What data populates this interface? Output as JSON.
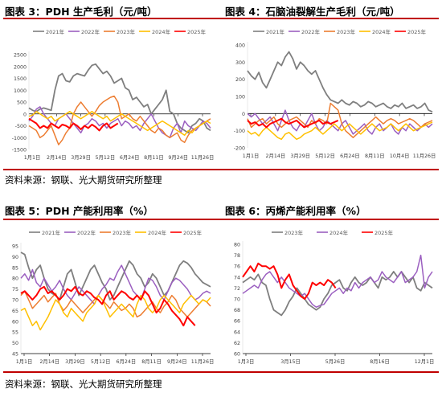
{
  "section1": {
    "source": "资料来源：钢联、光大期货研究所整理"
  },
  "section2": {
    "source": "资料来源：钢联、光大期货研究所整理"
  },
  "colors": {
    "rule": "#c00000",
    "y2021": "#7f7f7f",
    "y2022": "#9b5fc0",
    "y2023": "#ed7d31",
    "y2024": "#ffc000",
    "y2025": "#ff0000"
  },
  "chart_data": [
    {
      "id": "fig3",
      "type": "line",
      "title": "图表 3：PDH 生产毛利（元/吨）",
      "ylim": [
        -1500,
        2500
      ],
      "yticks": [
        -1500,
        -1000,
        -500,
        0,
        500,
        1000,
        1500,
        2000,
        2500
      ],
      "xticks": [
        "1月1日",
        "2月14日",
        "3月29日",
        "5月12日",
        "6月24日",
        "8月11日",
        "9月24日",
        "11月26日"
      ],
      "x_count": 50,
      "series": [
        {
          "name": "2021年",
          "color": "#7f7f7f",
          "width": 1.8,
          "values": [
            250,
            150,
            100,
            200,
            250,
            200,
            150,
            1000,
            1600,
            1700,
            1400,
            1350,
            1600,
            1700,
            1650,
            1600,
            1850,
            2050,
            2100,
            1900,
            1700,
            1800,
            1600,
            1300,
            1400,
            1500,
            1100,
            1000,
            600,
            700,
            500,
            300,
            400,
            0,
            200,
            400,
            600,
            1000,
            100,
            0,
            -400,
            -600,
            -700,
            -800,
            -500,
            -400,
            -200,
            -300,
            -600,
            -700
          ]
        },
        {
          "name": "2022年",
          "color": "#9b5fc0",
          "width": 1.5,
          "values": [
            -300,
            -100,
            200,
            300,
            0,
            -200,
            -400,
            -500,
            -200,
            -100,
            0,
            -200,
            -400,
            -600,
            -800,
            -500,
            -400,
            -200,
            -300,
            -500,
            -400,
            -600,
            -400,
            -300,
            -200,
            -500,
            -300,
            -400,
            -600,
            -500,
            -700,
            -400,
            -200,
            0,
            -300,
            -600,
            -800,
            -900,
            -1000,
            -600,
            -400,
            -800,
            -300,
            -500,
            -600,
            -700,
            -500,
            -300,
            -400,
            -600
          ]
        },
        {
          "name": "2023年",
          "color": "#ed7d31",
          "width": 1.5,
          "values": [
            -500,
            -600,
            -700,
            -1000,
            -900,
            -700,
            -500,
            -900,
            -1300,
            -1100,
            -800,
            -600,
            0,
            300,
            500,
            300,
            100,
            -100,
            100,
            350,
            500,
            600,
            700,
            750,
            500,
            -200,
            -100,
            0,
            -200,
            -300,
            -100,
            -300,
            -500,
            -700,
            -800,
            -600,
            -700,
            -900,
            -1000,
            -900,
            -800,
            -1100,
            -1200,
            -900,
            -700,
            -600,
            -500,
            -400,
            -300,
            -200
          ]
        },
        {
          "name": "2024年",
          "color": "#ffc000",
          "width": 1.5,
          "values": [
            -100,
            -50,
            100,
            0,
            -100,
            -200,
            -100,
            -300,
            -200,
            -100,
            0,
            100,
            0,
            -100,
            -200,
            -100,
            0,
            100,
            0,
            -100,
            -200,
            -100,
            -300,
            -200,
            -100,
            0,
            -100,
            -200,
            -300,
            -400,
            -500,
            -600,
            -700,
            -600,
            -500,
            -400,
            -300,
            -400,
            -500,
            -600,
            -700,
            -800,
            -900,
            -700,
            -800,
            -600,
            -500,
            -400,
            -300,
            -400
          ]
        },
        {
          "name": "2025年",
          "color": "#ff0000",
          "width": 2,
          "values": [
            -200,
            -300,
            -400,
            -600,
            -500,
            -600,
            -400,
            -500,
            -600,
            -450,
            -500,
            -600,
            -400,
            -500,
            -650,
            -500,
            -600,
            -450,
            -550,
            -700,
            -500,
            -400,
            -600,
            -500,
            -400
          ]
        }
      ]
    },
    {
      "id": "fig4",
      "type": "line",
      "title": "图表 4：石脑油裂解生产毛利（元/吨）",
      "ylim": [
        -200,
        400
      ],
      "yticks": [
        -200,
        -100,
        0,
        100,
        200,
        300,
        400
      ],
      "xticks": [
        "1月1日",
        "2月14日",
        "3月29日",
        "5月12日",
        "6月24日",
        "8月11日",
        "10月4日",
        "11月26日"
      ],
      "x_count": 50,
      "series": [
        {
          "name": "2021年",
          "color": "#7f7f7f",
          "width": 1.8,
          "values": [
            250,
            220,
            200,
            240,
            180,
            150,
            200,
            250,
            300,
            280,
            330,
            360,
            320,
            260,
            300,
            280,
            250,
            230,
            250,
            200,
            150,
            110,
            80,
            70,
            60,
            80,
            60,
            50,
            70,
            60,
            40,
            50,
            70,
            60,
            40,
            50,
            60,
            40,
            30,
            50,
            40,
            60,
            30,
            40,
            50,
            30,
            40,
            60,
            20,
            10
          ]
        },
        {
          "name": "2022年",
          "color": "#9b5fc0",
          "width": 1.5,
          "values": [
            0,
            -20,
            0,
            -30,
            -60,
            -40,
            -20,
            -60,
            -100,
            -40,
            20,
            -40,
            -80,
            -100,
            -60,
            -80,
            -40,
            0,
            -60,
            -100,
            -80,
            -40,
            -60,
            -80,
            -100,
            -60,
            -40,
            -80,
            -120,
            -100,
            -80,
            -60,
            -100,
            -120,
            -80,
            -60,
            -100,
            -80,
            -60,
            -100,
            -120,
            -80,
            -100,
            -60,
            -80,
            -100,
            -80,
            -60,
            -80,
            -60
          ]
        },
        {
          "name": "2023年",
          "color": "#ed7d31",
          "width": 1.5,
          "values": [
            -30,
            -80,
            -60,
            -40,
            -30,
            -60,
            -40,
            -20,
            -60,
            -80,
            -60,
            -40,
            -30,
            -20,
            -40,
            -60,
            -80,
            -40,
            -60,
            -30,
            -40,
            -60,
            60,
            40,
            20,
            -60,
            -100,
            -120,
            -140,
            -120,
            -100,
            -80,
            -60,
            -40,
            -20,
            -40,
            -60,
            -40,
            -30,
            -40,
            -60,
            -50,
            -40,
            -30,
            -40,
            -60,
            -80,
            -60,
            -50,
            -40
          ]
        },
        {
          "name": "2024年",
          "color": "#ffc000",
          "width": 1.5,
          "values": [
            -100,
            -120,
            -110,
            -130,
            -100,
            -80,
            -100,
            -120,
            -140,
            -150,
            -120,
            -110,
            -130,
            -150,
            -140,
            -120,
            -110,
            -100,
            -80,
            -100,
            -120,
            -100,
            -80,
            -60,
            -80,
            -100,
            -80,
            -60,
            -80,
            -100,
            -120,
            -100,
            -80,
            -60,
            -80,
            -100,
            -90,
            -80,
            -60,
            -80,
            -100,
            -80,
            -60,
            -80,
            -100,
            -90,
            -80,
            -70,
            -60,
            -50
          ]
        },
        {
          "name": "2025年",
          "color": "#ff0000",
          "width": 2,
          "values": [
            -40,
            -60,
            -50,
            -70,
            -60,
            -80,
            -60,
            -50,
            -40,
            -30,
            -50,
            -60,
            -50,
            -40,
            -60,
            -80,
            -70,
            -60,
            -50,
            -40,
            -60,
            -50,
            -60,
            -50,
            -40
          ]
        }
      ]
    },
    {
      "id": "fig5",
      "type": "line",
      "title": "图表 5：PDH 产能利用率（%）",
      "ylim": [
        45,
        95
      ],
      "yticks": [
        45,
        50,
        55,
        60,
        65,
        70,
        75,
        80,
        85,
        90,
        95
      ],
      "xticks": [
        "1月1日",
        "2月14日",
        "3月29日",
        "5月12日",
        "6月24日",
        "8月11日",
        "9月24日",
        "11月26日"
      ],
      "x_count": 50,
      "series": [
        {
          "name": "2021年",
          "color": "#7f7f7f",
          "width": 1.8,
          "values": [
            92,
            91,
            85,
            80,
            84,
            86,
            80,
            75,
            73,
            72,
            70,
            76,
            82,
            84,
            78,
            72,
            76,
            80,
            84,
            86,
            82,
            78,
            75,
            70,
            72,
            76,
            80,
            84,
            88,
            86,
            82,
            80,
            76,
            78,
            82,
            80,
            76,
            72,
            74,
            78,
            82,
            86,
            88,
            87,
            85,
            82,
            80,
            78,
            77,
            76
          ]
        },
        {
          "name": "2022年",
          "color": "#9b5fc0",
          "width": 1.5,
          "values": [
            80,
            82,
            79,
            84,
            78,
            76,
            80,
            77,
            74,
            76,
            79,
            75,
            72,
            70,
            73,
            76,
            74,
            72,
            70,
            68,
            72,
            75,
            77,
            80,
            79,
            83,
            86,
            82,
            78,
            74,
            72,
            70,
            75,
            80,
            79,
            76,
            72,
            70,
            74,
            78,
            80,
            79,
            77,
            75,
            72,
            70,
            71,
            73,
            74,
            73
          ]
        },
        {
          "name": "2023年",
          "color": "#ed7d31",
          "width": 1.5,
          "values": [
            72,
            74,
            70,
            66,
            68,
            70,
            72,
            69,
            71,
            73,
            68,
            65,
            67,
            70,
            68,
            66,
            64,
            66,
            68,
            70,
            72,
            70,
            68,
            66,
            69,
            67,
            65,
            66,
            68,
            66,
            62,
            63,
            65,
            67,
            69,
            66,
            64,
            67,
            69,
            72,
            70,
            66,
            64,
            62,
            64,
            66,
            68,
            70,
            69,
            67
          ]
        },
        {
          "name": "2024年",
          "color": "#ffc000",
          "width": 1.5,
          "values": [
            65,
            66,
            62,
            58,
            60,
            56,
            59,
            62,
            66,
            70,
            68,
            64,
            62,
            66,
            64,
            62,
            60,
            64,
            66,
            68,
            72,
            70,
            66,
            62,
            64,
            66,
            68,
            66,
            64,
            62,
            68,
            72,
            70,
            66,
            64,
            66,
            70,
            72,
            70,
            68,
            66,
            64,
            68,
            70,
            72,
            70,
            68,
            70,
            69,
            71
          ]
        },
        {
          "name": "2025年",
          "color": "#ff0000",
          "width": 2,
          "values": [
            73,
            74,
            72,
            70,
            72,
            75,
            76,
            73,
            74,
            72,
            70,
            72,
            75,
            74,
            76,
            73,
            72,
            74,
            73,
            71,
            70,
            68,
            72,
            74,
            70,
            72,
            74,
            73,
            71,
            70,
            72,
            70,
            74,
            72,
            68,
            64,
            66,
            70,
            68,
            65,
            63,
            61,
            58,
            62,
            60,
            58
          ]
        }
      ]
    },
    {
      "id": "fig6",
      "type": "line",
      "title": "图表 6：丙烯产能利用率（%）",
      "ylim": [
        60,
        80
      ],
      "yticks": [
        60,
        62,
        64,
        66,
        68,
        70,
        72,
        74,
        76,
        78,
        80
      ],
      "xticks": [
        "1月3日",
        "3月15日",
        "5月26日",
        "8月16日",
        "12月1日"
      ],
      "x_count": 50,
      "series": [
        {
          "name": "2023年",
          "color": "#7f7f7f",
          "width": 1.8,
          "values": [
            73,
            73.5,
            74,
            73.5,
            74.5,
            73,
            72.5,
            70,
            68,
            67.5,
            67,
            68,
            69.5,
            70.5,
            72,
            71,
            70,
            69,
            68.5,
            68,
            68.5,
            70,
            71,
            72.5,
            73,
            73.5,
            72,
            71.5,
            73,
            74,
            73,
            72.5,
            73,
            74,
            73,
            72,
            74,
            73.5,
            74,
            75,
            74,
            75,
            74,
            73,
            74,
            72,
            71.5,
            73,
            72.5,
            72
          ]
        },
        {
          "name": "2024年",
          "color": "#9b5fc0",
          "width": 1.5,
          "values": [
            71,
            71.5,
            72,
            72.5,
            72,
            73.5,
            74.5,
            75,
            74,
            73,
            74,
            73,
            72,
            71.5,
            71,
            70.5,
            71,
            70,
            69,
            68.5,
            68.8,
            69,
            70,
            71,
            71.5,
            72,
            71,
            72,
            71.5,
            73,
            72,
            73,
            73.5,
            74,
            73,
            73.5,
            75,
            74,
            73.5,
            73,
            74,
            75,
            73,
            73.5,
            74,
            75,
            78,
            72,
            74,
            75
          ]
        },
        {
          "name": "2025年",
          "color": "#ff0000",
          "width": 2,
          "values": [
            74,
            75,
            76,
            75,
            76.5,
            76,
            76,
            75.5,
            76,
            74.5,
            72,
            73.5,
            74.5,
            72.5,
            71.5,
            70.5,
            70,
            71,
            73,
            72.5,
            73,
            72.5,
            73.5,
            73,
            72
          ]
        }
      ]
    }
  ]
}
